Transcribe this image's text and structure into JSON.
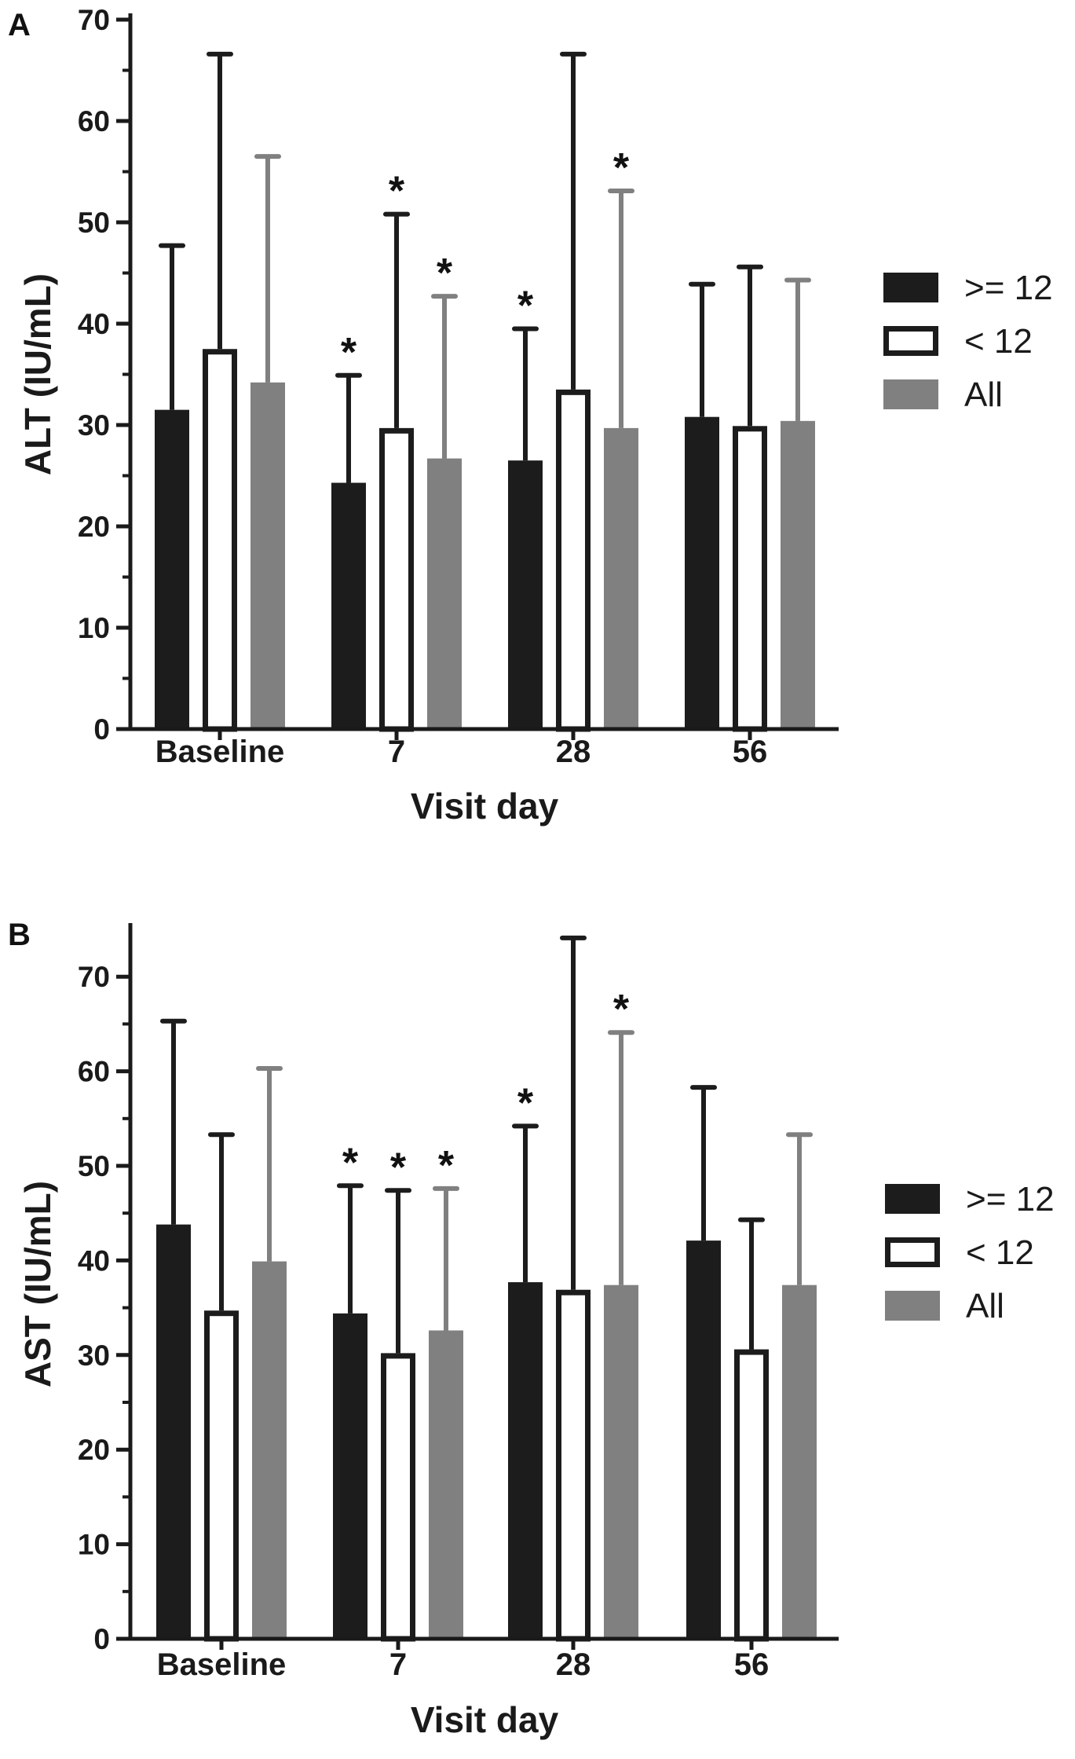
{
  "colors": {
    "black_series": "#1c1c1c",
    "white_series": "#ffffff",
    "gray_series": "#808080",
    "axis": "#1a1a1a"
  },
  "chart_data": [
    {
      "type": "bar",
      "panel_label": "A",
      "categories": [
        "Baseline",
        "7",
        "28",
        "56"
      ],
      "xlabel": "Visit day",
      "ylabel": "ALT (IU/mL)",
      "ylim": [
        0,
        70
      ],
      "yticks": [
        0,
        10,
        20,
        30,
        40,
        50,
        60,
        70
      ],
      "grid": false,
      "legend_position": "right",
      "series": [
        {
          "name": ">= 12",
          "style": "black",
          "values": [
            31.5,
            24.3,
            26.5,
            30.8
          ],
          "error_upper": [
            47.7,
            34.9,
            39.5,
            43.9
          ],
          "significant": [
            false,
            true,
            true,
            false
          ]
        },
        {
          "name": "< 12",
          "style": "white",
          "values": [
            37.5,
            29.7,
            33.5,
            29.9
          ],
          "error_upper": [
            66.6,
            50.8,
            66.6,
            45.6
          ],
          "significant": [
            false,
            true,
            false,
            false
          ]
        },
        {
          "name": "All",
          "style": "gray",
          "values": [
            34.2,
            26.7,
            29.7,
            30.4
          ],
          "error_upper": [
            56.5,
            42.7,
            53.1,
            44.3
          ],
          "significant": [
            false,
            true,
            true,
            false
          ]
        }
      ],
      "annotations": [
        "*"
      ]
    },
    {
      "type": "bar",
      "panel_label": "B",
      "categories": [
        "Baseline",
        "7",
        "28",
        "56"
      ],
      "xlabel": "Visit day",
      "ylabel": "AST (IU/mL)",
      "ylim": [
        0,
        75
      ],
      "yticks": [
        0,
        10,
        20,
        30,
        40,
        50,
        60,
        70
      ],
      "grid": false,
      "legend_position": "right",
      "series": [
        {
          "name": ">= 12",
          "style": "black",
          "values": [
            43.8,
            34.4,
            37.7,
            42.1
          ],
          "error_upper": [
            65.3,
            47.9,
            54.2,
            58.3
          ],
          "significant": [
            false,
            true,
            true,
            false
          ]
        },
        {
          "name": "< 12",
          "style": "white",
          "values": [
            34.7,
            30.2,
            36.9,
            30.6
          ],
          "error_upper": [
            53.3,
            47.4,
            74.1,
            44.3
          ],
          "significant": [
            false,
            true,
            false,
            false
          ]
        },
        {
          "name": "All",
          "style": "gray",
          "values": [
            39.9,
            32.6,
            37.4,
            37.4
          ],
          "error_upper": [
            60.3,
            47.6,
            64.1,
            53.3
          ],
          "significant": [
            false,
            true,
            true,
            false
          ]
        }
      ],
      "annotations": [
        "*"
      ]
    }
  ]
}
